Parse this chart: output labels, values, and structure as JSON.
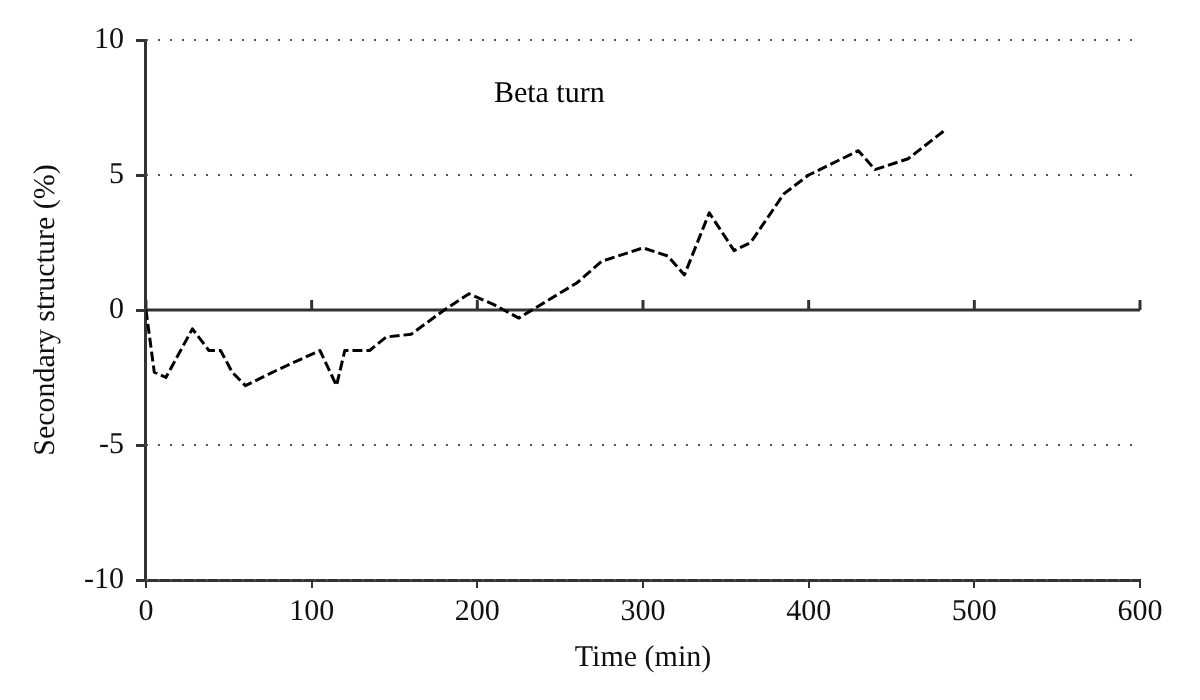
{
  "chart_data": {
    "type": "line",
    "xlabel": "Time (min)",
    "ylabel": "Secondary structure (%)",
    "xlim": [
      0,
      600
    ],
    "xticks": [
      0,
      100,
      200,
      300,
      400,
      500,
      600
    ],
    "ylim": [
      -10,
      10
    ],
    "yticks": [
      -10,
      -5,
      0,
      5,
      10
    ],
    "grid": "y",
    "legend": false,
    "marker": "none",
    "line_style": "dashed",
    "series": [
      {
        "name": "Beta turn",
        "color": "#000000",
        "x": [
          0,
          5,
          12,
          28,
          38,
          45,
          52,
          60,
          80,
          105,
          115,
          120,
          135,
          145,
          160,
          180,
          195,
          210,
          225,
          260,
          275,
          300,
          315,
          325,
          340,
          355,
          365,
          385,
          400,
          430,
          440,
          460,
          483
        ],
        "values": [
          0,
          -2.3,
          -2.5,
          -0.7,
          -1.5,
          -1.5,
          -2.3,
          -2.8,
          -2.2,
          -1.5,
          -2.8,
          -1.5,
          -1.5,
          -1,
          -0.9,
          0,
          0.6,
          0.2,
          -0.3,
          1,
          1.8,
          2.3,
          2,
          1.3,
          3.6,
          2.2,
          2.5,
          4.3,
          5,
          5.9,
          5.2,
          5.6,
          6.7
        ]
      }
    ]
  }
}
